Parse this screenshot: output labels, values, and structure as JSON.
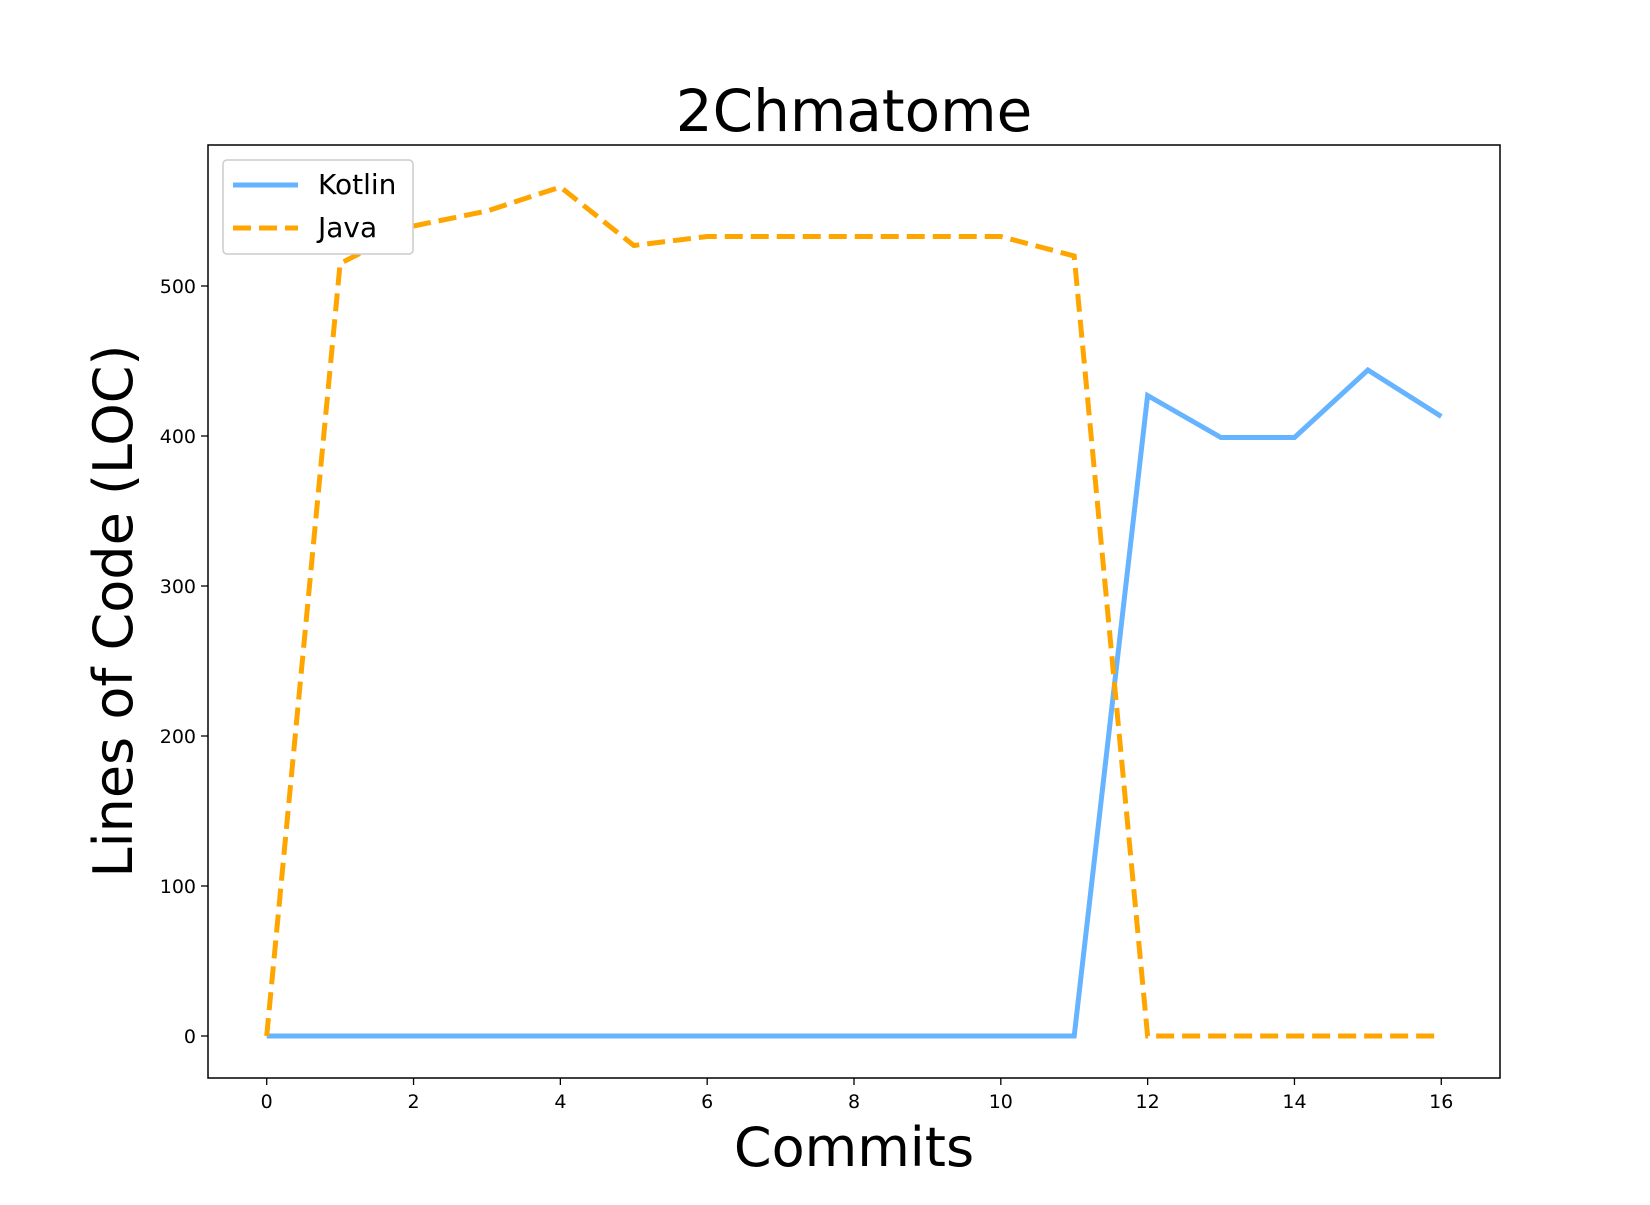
{
  "chart_data": {
    "type": "line",
    "title": "2Chmatome",
    "xlabel": "Commits",
    "ylabel": "Lines of Code (LOC)",
    "x": [
      0,
      1,
      2,
      3,
      4,
      5,
      6,
      7,
      8,
      9,
      10,
      11,
      12,
      13,
      14,
      15,
      16
    ],
    "xlim": [
      -0.8,
      16.8
    ],
    "ylim": [
      -28,
      594
    ],
    "xticks": [
      0,
      2,
      4,
      6,
      8,
      10,
      12,
      14,
      16
    ],
    "yticks": [
      0,
      100,
      200,
      300,
      400,
      500
    ],
    "grid": false,
    "legend_position": "top-left",
    "series": [
      {
        "name": "Kotlin",
        "color": "#66b3ff",
        "style": "solid",
        "values": [
          0,
          0,
          0,
          0,
          0,
          0,
          0,
          0,
          0,
          0,
          0,
          0,
          427,
          399,
          399,
          444,
          413
        ]
      },
      {
        "name": "Java",
        "color": "#ffa500",
        "style": "dashed",
        "values": [
          0,
          515,
          540,
          550,
          566,
          527,
          533,
          533,
          533,
          533,
          533,
          520,
          0,
          0,
          0,
          0,
          0
        ]
      }
    ]
  }
}
